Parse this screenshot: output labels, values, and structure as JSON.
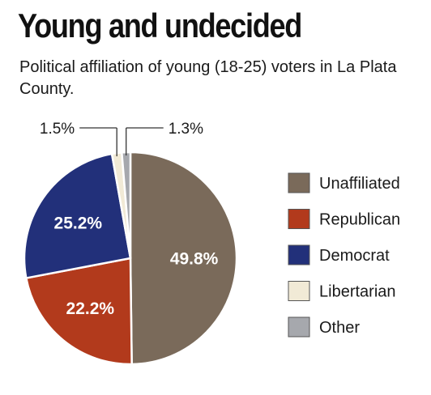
{
  "title": "Young and undecided",
  "subtitle": "Political affiliation of young (18-25) voters in La Plata County.",
  "chart_data": {
    "type": "pie",
    "title": "Young and undecided",
    "subtitle": "Political affiliation of young (18-25) voters in La Plata County.",
    "legend_position": "right",
    "slices": [
      {
        "name": "Unaffiliated",
        "value": 49.8,
        "label": "49.8%",
        "color": "#7a6a5a"
      },
      {
        "name": "Republican",
        "value": 22.2,
        "label": "22.2%",
        "color": "#b23a1c"
      },
      {
        "name": "Democrat",
        "value": 25.2,
        "label": "25.2%",
        "color": "#22307a"
      },
      {
        "name": "Libertarian",
        "value": 1.5,
        "label": "1.5%",
        "color": "#f1ead6"
      },
      {
        "name": "Other",
        "value": 1.3,
        "label": "1.3%",
        "color": "#a6a8ad"
      }
    ]
  }
}
